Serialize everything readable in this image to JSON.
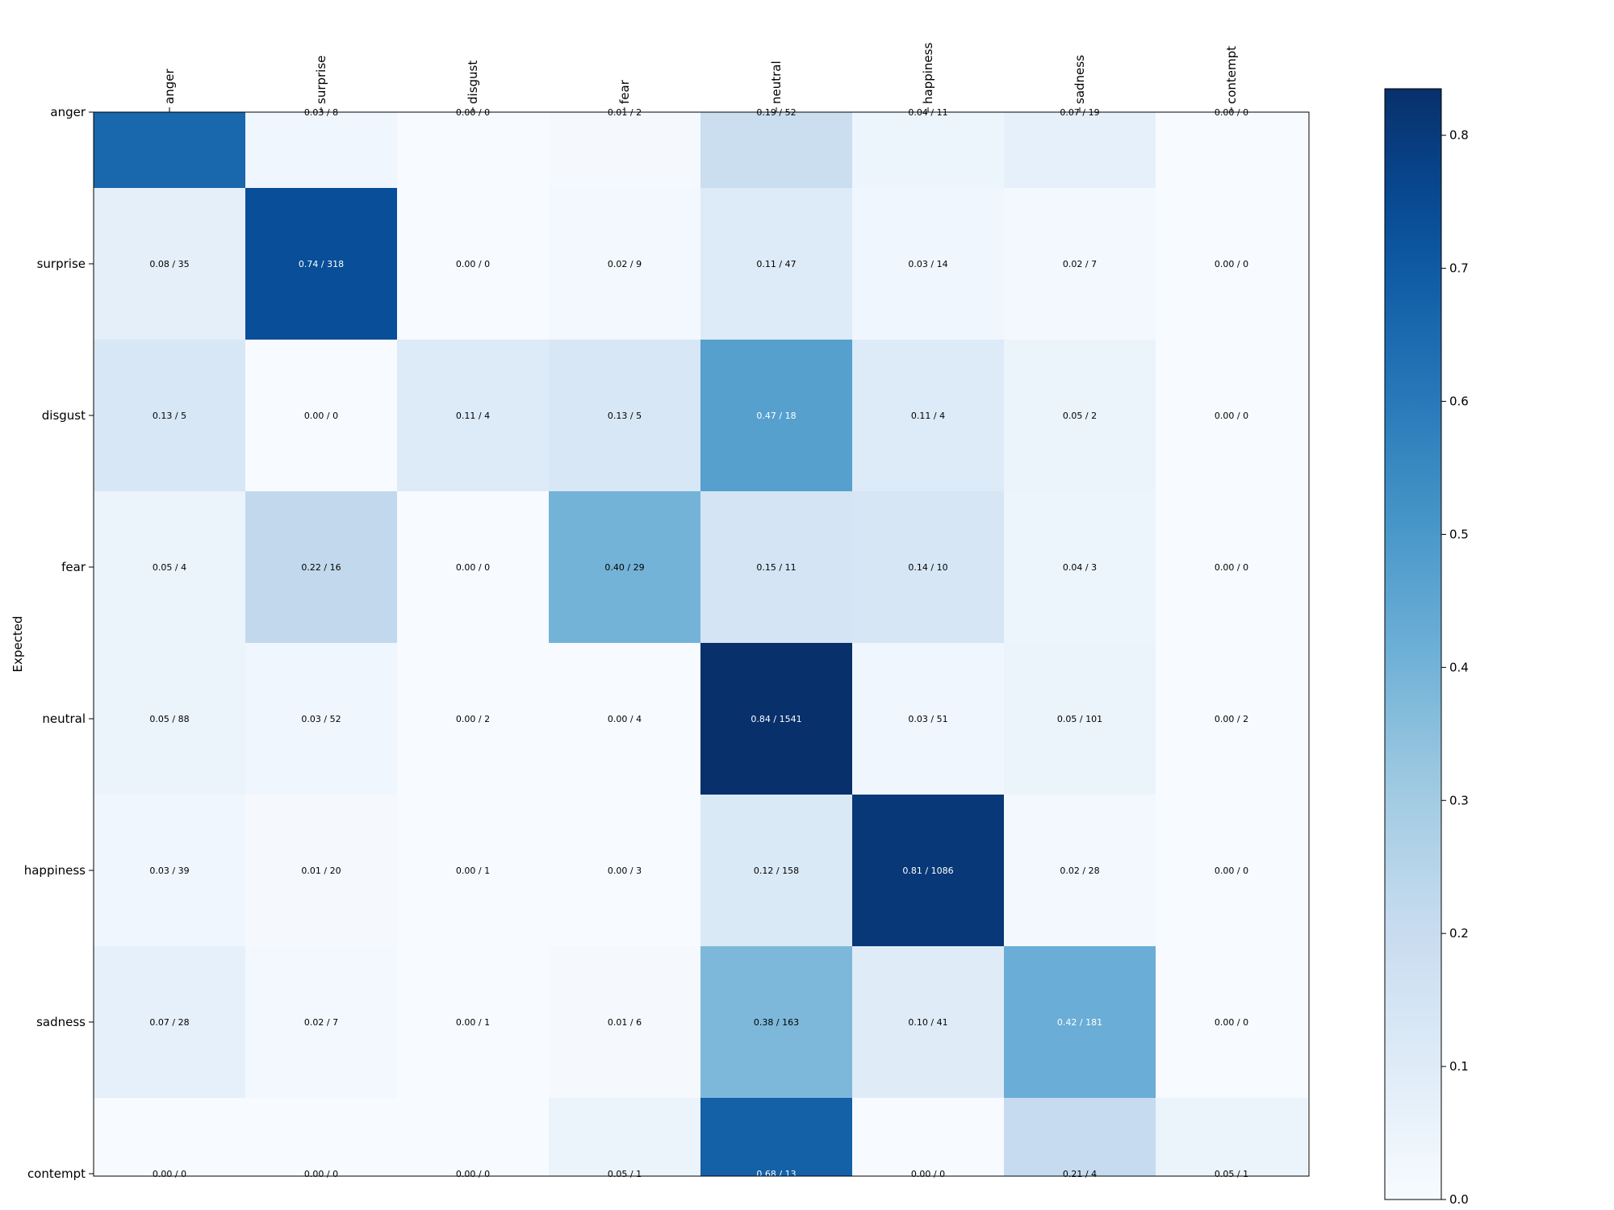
{
  "chart_data": {
    "type": "heatmap",
    "title": "",
    "xlabel": "",
    "ylabel": "Expected",
    "x_categories": [
      "anger",
      "surprise",
      "disgust",
      "fear",
      "neutral",
      "happiness",
      "sadness",
      "contempt"
    ],
    "y_categories": [
      "anger",
      "surprise",
      "disgust",
      "fear",
      "neutral",
      "happiness",
      "sadness",
      "contempt"
    ],
    "x_tick_position": "top",
    "x_tick_rotation": 90,
    "colormap": "Blues",
    "value_range": [
      0,
      0.835
    ],
    "values": [
      [
        0.66,
        0.03,
        0.0,
        0.01,
        0.19,
        0.04,
        0.07,
        0.0
      ],
      [
        0.08,
        0.74,
        0.0,
        0.02,
        0.11,
        0.03,
        0.02,
        0.0
      ],
      [
        0.13,
        0.0,
        0.11,
        0.13,
        0.47,
        0.11,
        0.05,
        0.0
      ],
      [
        0.05,
        0.22,
        0.0,
        0.4,
        0.15,
        0.14,
        0.04,
        0.0
      ],
      [
        0.05,
        0.03,
        0.0,
        0.0,
        0.84,
        0.03,
        0.05,
        0.0
      ],
      [
        0.03,
        0.01,
        0.0,
        0.0,
        0.12,
        0.81,
        0.02,
        0.0
      ],
      [
        0.07,
        0.02,
        0.0,
        0.01,
        0.38,
        0.1,
        0.42,
        0.0
      ],
      [
        0.0,
        0.0,
        0.0,
        0.05,
        0.68,
        0.0,
        0.21,
        0.05
      ]
    ],
    "cell_labels": [
      [
        "",
        "0.03 / 8",
        "0.00 / 0",
        "0.01 / 2",
        "0.19 / 52",
        "0.04 / 11",
        "0.07 / 19",
        "0.00 / 0"
      ],
      [
        "0.08 / 35",
        "0.74 / 318",
        "0.00 / 0",
        "0.02 / 9",
        "0.11 / 47",
        "0.03 / 14",
        "0.02 / 7",
        "0.00 / 0"
      ],
      [
        "0.13 / 5",
        "0.00 / 0",
        "0.11 / 4",
        "0.13 / 5",
        "0.47 / 18",
        "0.11 / 4",
        "0.05 / 2",
        "0.00 / 0"
      ],
      [
        "0.05 / 4",
        "0.22 / 16",
        "0.00 / 0",
        "0.40 / 29",
        "0.15 / 11",
        "0.14 / 10",
        "0.04 / 3",
        "0.00 / 0"
      ],
      [
        "0.05 / 88",
        "0.03 / 52",
        "0.00 / 2",
        "0.00 / 4",
        "0.84 / 1541",
        "0.03 / 51",
        "0.05 / 101",
        "0.00 / 2"
      ],
      [
        "0.03 / 39",
        "0.01 / 20",
        "0.00 / 1",
        "0.00 / 3",
        "0.12 / 158",
        "0.81 / 1086",
        "0.02 / 28",
        "0.00 / 0"
      ],
      [
        "0.07 / 28",
        "0.02 / 7",
        "0.00 / 1",
        "0.01 / 6",
        "0.38 / 163",
        "0.10 / 41",
        "0.42 / 181",
        "0.00 / 0"
      ],
      [
        "0.00 / 0",
        "0.00 / 0",
        "0.00 / 0",
        "0.05 / 1",
        "0.68 / 13",
        "0.00 / 0",
        "0.21 / 4",
        "0.05 / 1"
      ]
    ],
    "colorbar": {
      "ticks": [
        0.0,
        0.1,
        0.2,
        0.3,
        0.4,
        0.5,
        0.6,
        0.7,
        0.8
      ],
      "tick_labels": [
        "0.0",
        "0.1",
        "0.2",
        "0.3",
        "0.4",
        "0.5",
        "0.6",
        "0.7",
        "0.8"
      ]
    },
    "grid": false
  }
}
